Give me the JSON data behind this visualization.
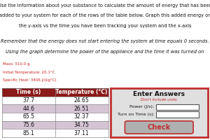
{
  "title_lines": [
    "Use the information about your substance to calculate the amount of energy that has been",
    "added to your system for each of the rows of the table below. Graph this added energy on",
    "the y-axis vs the time you have been tracking your system and the x-axis"
  ],
  "reminder_lines": [
    "Remember that the energy does not start entering the system at time equals 0 seconds.",
    "Using the graph determine the power of the appliance and the time it was turned on"
  ],
  "mass_label": "Mass: 510.0 g",
  "temp_label": "Initial Temperature: 20.1°C",
  "heat_label": "Specific Heat: 3406 J/(kg°C)",
  "table_headers": [
    "Time (s)",
    "Temperature (°C)"
  ],
  "table_data": [
    [
      "37.7",
      "24.65"
    ],
    [
      "44.6",
      "26.51"
    ],
    [
      "65.5",
      "32.37"
    ],
    [
      "75.6",
      "34.75"
    ],
    [
      "85.1",
      "37.11"
    ]
  ],
  "header_bg": "#8B1A1A",
  "header_fg": "#FFFFFF",
  "row_alt_bg": "#D4C4D4",
  "row_normal_bg": "#FFFFFF",
  "answer_box_bg": "#E0E0E0",
  "answer_box_border": "#C03030",
  "enter_answers_text": "Enter Answers",
  "dont_include_text": "Don't include units",
  "power_label": "Power (J/s):",
  "turn_on_label": "Turn on Time (s):",
  "check_button_text": "Check",
  "check_button_bg": "#B0B0B0",
  "check_button_fg": "#C03030",
  "red_text_color": "#CC2020",
  "body_text_color": "#111111",
  "bg_color": "#FFFFFF",
  "title_fontsize": 4.8,
  "reminder_fontsize": 4.8,
  "prop_fontsize": 4.0,
  "table_fontsize": 5.5,
  "ans_header_fontsize": 6.5,
  "ans_label_fontsize": 4.5,
  "check_fontsize": 7.0
}
